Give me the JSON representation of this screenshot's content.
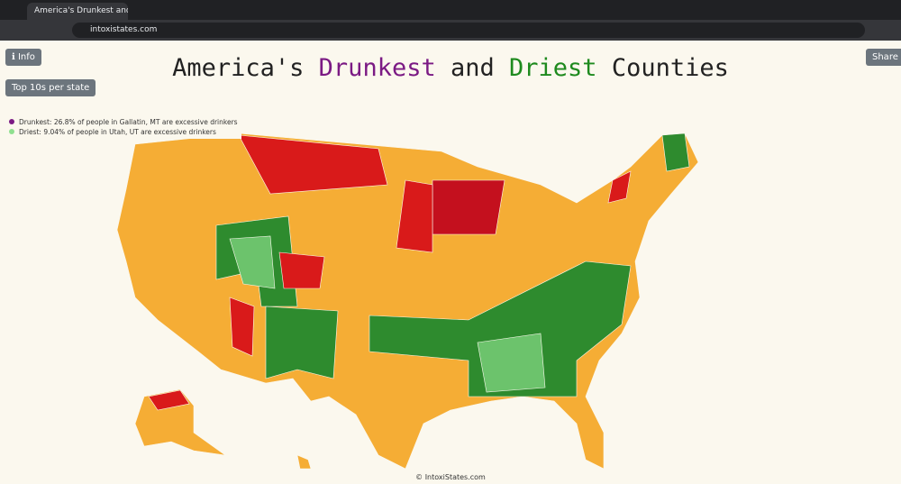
{
  "browser": {
    "tab_title": "America's Drunkest and Driest",
    "url": "intoxistates.com"
  },
  "buttons": {
    "info": "ℹ Info",
    "top10": "Top 10s per state",
    "share": "Share"
  },
  "title": {
    "w1": "America's",
    "drunkest": "Drunkest",
    "w2": "and",
    "driest": "Driest",
    "w3": "Counties"
  },
  "legend": [
    "Drunkest: 26.8% of people in Gallatin, MT are excessive drinkers",
    "Driest: 9.04% of people in Utah, UT are excessive drinkers"
  ],
  "footer": "© IntoxiStates.com"
}
